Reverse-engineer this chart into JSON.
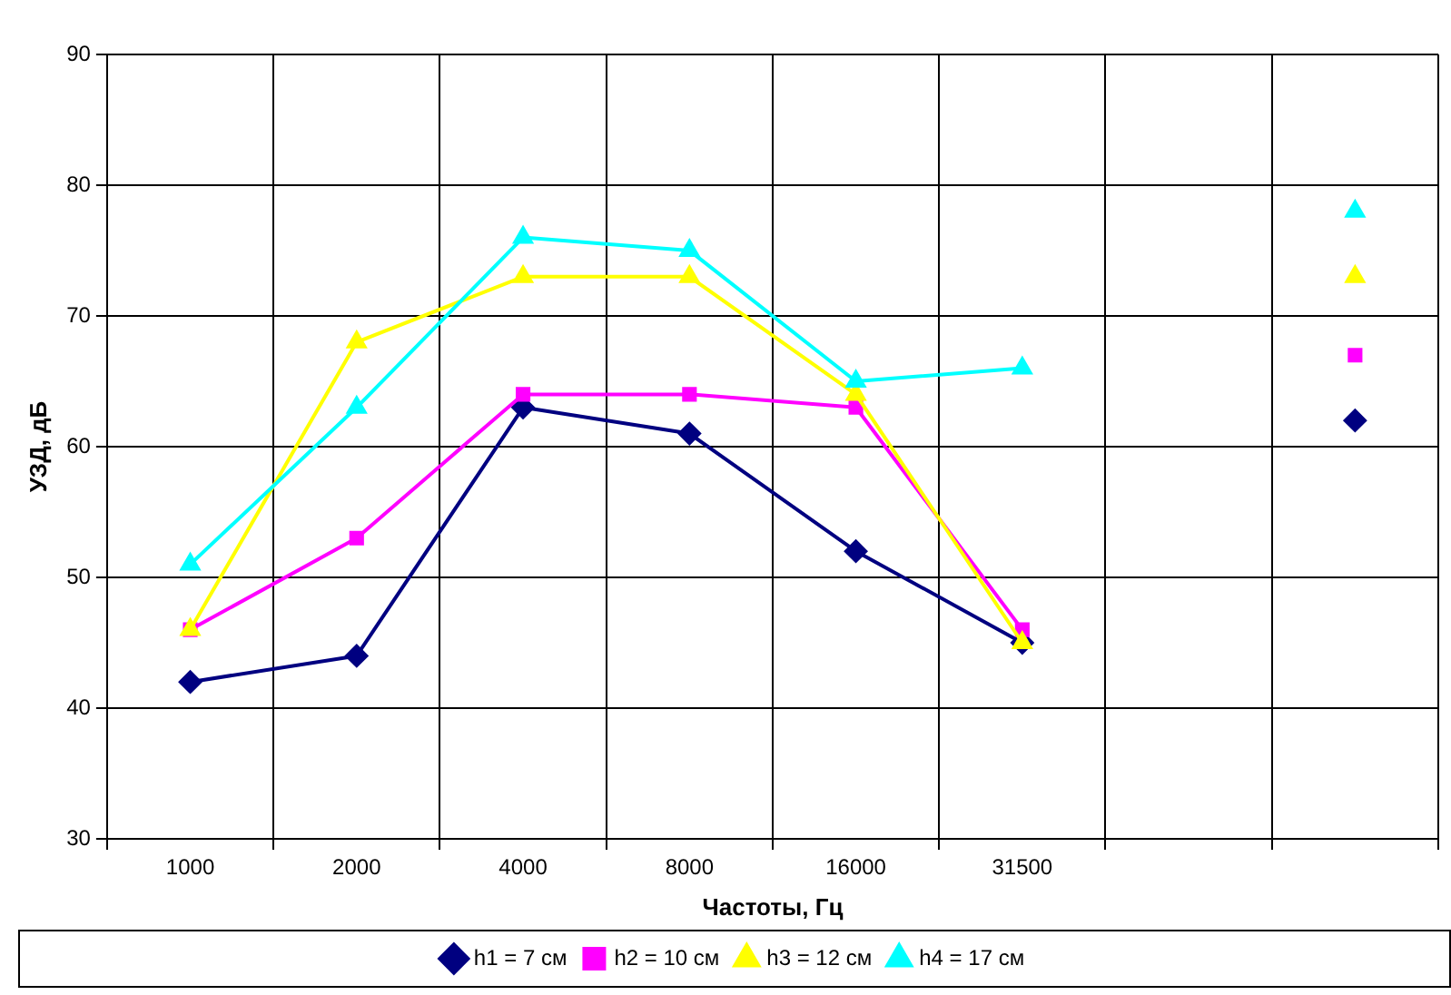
{
  "chart_data": {
    "type": "line",
    "xlabel": "Частоты, Гц",
    "ylabel": "УЗД, дБ",
    "categories": [
      "1000",
      "2000",
      "4000",
      "8000",
      "16000",
      "31500",
      null,
      null
    ],
    "series": [
      {
        "name": "h1 = 7 см",
        "color": "#000080",
        "marker": "diamond",
        "values": [
          42,
          44,
          63,
          61,
          52,
          45,
          null,
          62
        ]
      },
      {
        "name": "h2 = 10 см",
        "color": "#ff00ff",
        "marker": "square",
        "values": [
          46,
          53,
          64,
          64,
          63,
          46,
          null,
          67
        ]
      },
      {
        "name": "h3 = 12 см",
        "color": "#ffff00",
        "marker": "triangle",
        "values": [
          46,
          68,
          73,
          73,
          64,
          45,
          null,
          73
        ]
      },
      {
        "name": "h4 = 17 см",
        "color": "#00ffff",
        "marker": "triangle",
        "values": [
          51,
          63,
          76,
          75,
          65,
          66,
          null,
          78
        ]
      }
    ],
    "ylim": [
      30,
      90
    ],
    "yticks": [
      30,
      40,
      50,
      60,
      70,
      80,
      90
    ],
    "grid": true,
    "legend": "bottom"
  }
}
